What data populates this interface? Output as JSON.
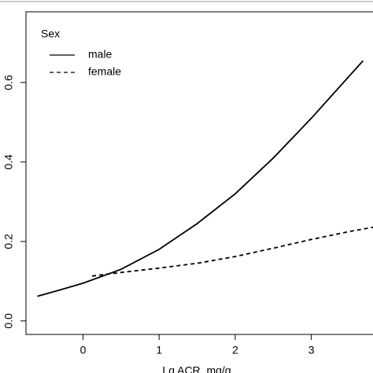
{
  "chart_data": {
    "type": "line",
    "xlabel": "Lg ACR, mg/g",
    "legend_title": "Sex",
    "legend": "top-left",
    "xlim": [
      -0.75,
      3.9
    ],
    "ylim": [
      -0.034,
      0.778
    ],
    "xticks": [
      0,
      1,
      2,
      3
    ],
    "yticks": [
      {
        "value": 0,
        "label": "0.0"
      },
      0.2,
      0.4,
      0.6
    ],
    "series": [
      {
        "name": "male",
        "color": "#000000",
        "linestyle": "solid",
        "x": [
          -0.6,
          -0.3,
          0,
          0.5,
          1,
          1.5,
          2,
          2.5,
          3,
          3.68
        ],
        "values": [
          0.062,
          0.078,
          0.095,
          0.13,
          0.18,
          0.245,
          0.32,
          0.41,
          0.51,
          0.655
        ]
      },
      {
        "name": "female",
        "color": "#000000",
        "linestyle": "dashed",
        "x": [
          0.12,
          0.5,
          1,
          1.5,
          2,
          2.5,
          3,
          3.5,
          3.85
        ],
        "values": [
          0.113,
          0.122,
          0.133,
          0.145,
          0.162,
          0.183,
          0.205,
          0.225,
          0.237
        ]
      }
    ]
  }
}
